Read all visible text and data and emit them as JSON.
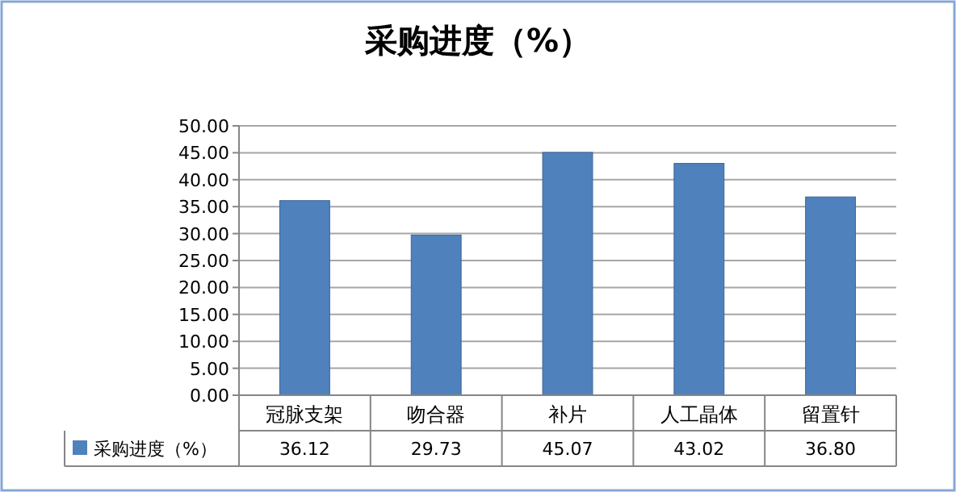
{
  "chart_data": {
    "type": "bar",
    "title": "采购进度（%）",
    "categories": [
      "冠脉支架",
      "吻合器",
      "补片",
      "人工晶体",
      "留置针"
    ],
    "series": [
      {
        "name": "采购进度（%）",
        "color": "#4f81bd",
        "values": [
          36.12,
          29.73,
          45.07,
          43.02,
          36.8
        ]
      }
    ],
    "value_labels": [
      "36.12",
      "29.73",
      "45.07",
      "43.02",
      "36.80"
    ],
    "ylim": [
      0,
      50
    ],
    "yticks": [
      {
        "value": 0,
        "label": "0.00"
      },
      {
        "value": 5,
        "label": "5.00"
      },
      {
        "value": 10,
        "label": "10.00"
      },
      {
        "value": 15,
        "label": "15.00"
      },
      {
        "value": 20,
        "label": "20.00"
      },
      {
        "value": 25,
        "label": "25.00"
      },
      {
        "value": 30,
        "label": "30.00"
      },
      {
        "value": 35,
        "label": "35.00"
      },
      {
        "value": 40,
        "label": "40.00"
      },
      {
        "value": 45,
        "label": "45.00"
      },
      {
        "value": 50,
        "label": "50.00"
      }
    ],
    "grid": "y",
    "legend": "bottom"
  }
}
